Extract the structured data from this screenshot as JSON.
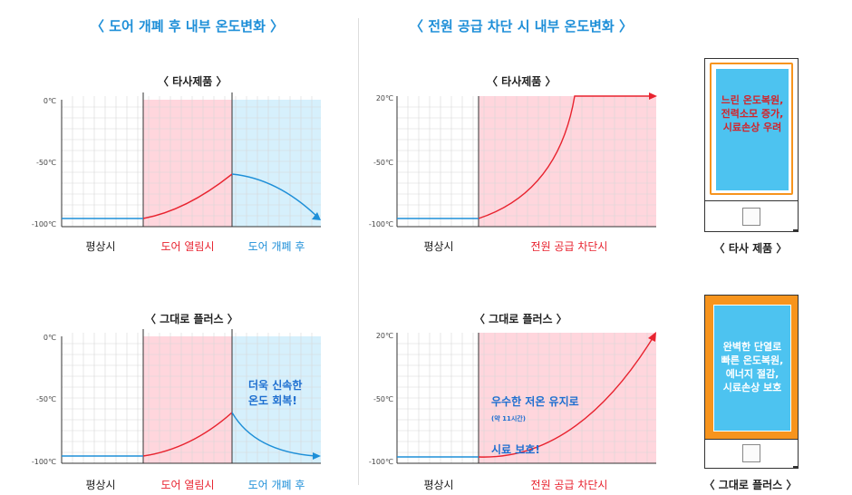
{
  "headings": {
    "left": "〈 도어 개폐 후 내부 온도변화 〉",
    "right": "〈 전원 공급 차단 시 내부 온도변화 〉"
  },
  "colors": {
    "heading_blue": "#1e8fd8",
    "zone_red_fill": "#ffd6dd",
    "zone_blue_fill": "#d6f0fc",
    "grid_line": "#d7d7d7",
    "line_red": "#e8232f",
    "line_blue": "#1e8fd8",
    "label_red": "#e8232f",
    "label_blue": "#1e8fd8",
    "fridge_orange": "#f7941d",
    "fridge_screen": "#4dc3f0",
    "fridge_text_red": "#d2232a",
    "fridge_text_white": "#ffffff"
  },
  "charts": {
    "door_other": {
      "title": "〈 타사제품 〉",
      "yticks": [
        "0℃",
        "-50℃",
        "-100℃"
      ],
      "zones": [
        "평상시",
        "도어 열림시",
        "도어 개폐 후"
      ]
    },
    "door_grande": {
      "title": "〈 그대로 플러스 〉",
      "yticks": [
        "0℃",
        "-50℃",
        "-100℃"
      ],
      "zones": [
        "평상시",
        "도어 열림시",
        "도어 개폐 후"
      ],
      "callout": "더욱 신속한\n온도 회복!"
    },
    "power_other": {
      "title": "〈 타사제품 〉",
      "yticks": [
        "20℃",
        "-50℃",
        "-100℃"
      ],
      "zones": [
        "평상시",
        "전원 공급 차단시"
      ]
    },
    "power_grande": {
      "title": "〈 그대로 플러스 〉",
      "yticks": [
        "20℃",
        "-50℃",
        "-100℃"
      ],
      "zones": [
        "평상시",
        "전원 공급 차단시"
      ],
      "callout_main": "우수한 저온 유지로",
      "callout_note": "(약 11시간)",
      "callout_line2": "시료 보호!"
    }
  },
  "chart_data": [
    {
      "type": "line",
      "title": "〈 타사제품 〉",
      "xlabel": "",
      "ylabel": "",
      "ylim": [
        -100,
        0
      ],
      "yticks": [
        0,
        -50,
        -100
      ],
      "phases": [
        "평상시",
        "도어 열림시",
        "도어 개폐 후"
      ],
      "curve": [
        [
          0,
          -95
        ],
        [
          1,
          -95
        ],
        [
          2,
          -60
        ],
        [
          3,
          -95
        ]
      ]
    },
    {
      "type": "line",
      "title": "〈 그대로 플러스 〉",
      "xlabel": "",
      "ylabel": "",
      "ylim": [
        -100,
        0
      ],
      "yticks": [
        0,
        -50,
        -100
      ],
      "phases": [
        "평상시",
        "도어 열림시",
        "도어 개폐 후"
      ],
      "curve": [
        [
          0,
          -95
        ],
        [
          1,
          -95
        ],
        [
          2,
          -60
        ],
        [
          3,
          -95
        ]
      ]
    },
    {
      "type": "line",
      "title": "〈 타사제품 〉",
      "xlabel": "",
      "ylabel": "",
      "ylim": [
        -100,
        20
      ],
      "yticks": [
        20,
        -50,
        -100
      ],
      "phases": [
        "평상시",
        "전원 공급 차단시"
      ],
      "curve": [
        [
          0,
          -94
        ],
        [
          1,
          -94
        ],
        [
          2,
          20
        ],
        [
          3,
          20
        ]
      ]
    },
    {
      "type": "line",
      "title": "〈 그대로 플러스 〉",
      "xlabel": "",
      "ylabel": "",
      "ylim": [
        -100,
        20
      ],
      "yticks": [
        20,
        -50,
        -100
      ],
      "phases": [
        "평상시",
        "전원 공급 차단시"
      ],
      "curve": [
        [
          0,
          -96
        ],
        [
          1,
          -96
        ],
        [
          3,
          20
        ]
      ]
    }
  ],
  "fridges": {
    "other": {
      "screen_text": "느린 온도복원,\n전력소모 증가,\n시료손상 우려",
      "label": "〈 타사 제품 〉"
    },
    "grande": {
      "screen_text": "완벽한 단열로\n빠른 온도복원,\n에너지 절감,\n시료손상 보호",
      "label": "〈 그대로 플러스 〉"
    }
  }
}
